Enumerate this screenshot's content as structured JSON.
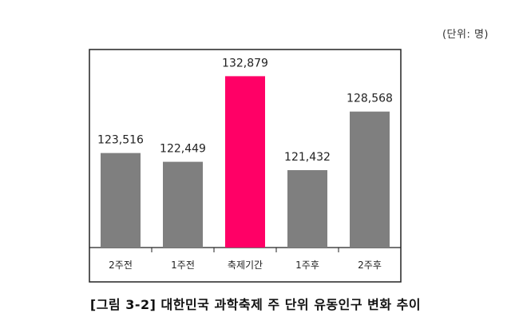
{
  "unit_label": "(단위: 명)",
  "caption": "[그림 3-2] 대한민국 과학축제 주 단위 유동인구 변화 추이",
  "colors": {
    "bar_default": "#7f7f7f",
    "bar_highlight": "#ff0066",
    "frame": "#222222"
  },
  "chart_data": {
    "type": "bar",
    "categories": [
      "2주전",
      "1주전",
      "축제기간",
      "1주후",
      "2주후"
    ],
    "values": [
      123516,
      122449,
      132879,
      121432,
      128568
    ],
    "value_labels": [
      "123,516",
      "122,449",
      "132,879",
      "121,432",
      "128,568"
    ],
    "highlight_index": 2,
    "ylim": [
      112000,
      133600
    ],
    "grid": false,
    "legend": "none"
  }
}
